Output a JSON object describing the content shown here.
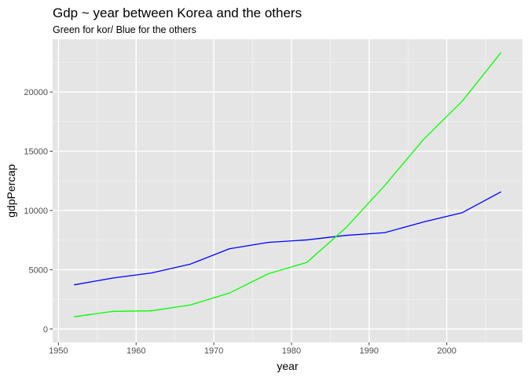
{
  "chart_data": {
    "type": "line",
    "title": "Gdp ~ year between Korea and the others",
    "subtitle": "Green for kor/ Blue for the others",
    "xlabel": "year",
    "ylabel": "gdpPercap",
    "xlim": [
      1949.25,
      2009.75
    ],
    "ylim": [
      -1135,
      24450
    ],
    "x_ticks": [
      1950,
      1960,
      1970,
      1980,
      1990,
      2000
    ],
    "y_ticks": [
      0,
      5000,
      10000,
      15000,
      20000
    ],
    "grid": true,
    "background": "#e5e5e5",
    "series": [
      {
        "color": "#0000ff",
        "x": [
          1952,
          1957,
          1962,
          1967,
          1972,
          1977,
          1982,
          1987,
          1992,
          1997,
          2002,
          2007
        ],
        "y": [
          3725,
          4300,
          4730,
          5480,
          6770,
          7310,
          7520,
          7900,
          8130,
          9030,
          9820,
          11580
        ]
      },
      {
        "color": "#00ff00",
        "x": [
          1952,
          1957,
          1962,
          1967,
          1972,
          1977,
          1982,
          1987,
          1992,
          1997,
          2002,
          2007
        ],
        "y": [
          1031,
          1488,
          1537,
          2029,
          3031,
          4657,
          5623,
          8533,
          12104,
          15994,
          19234,
          23348
        ]
      }
    ]
  }
}
